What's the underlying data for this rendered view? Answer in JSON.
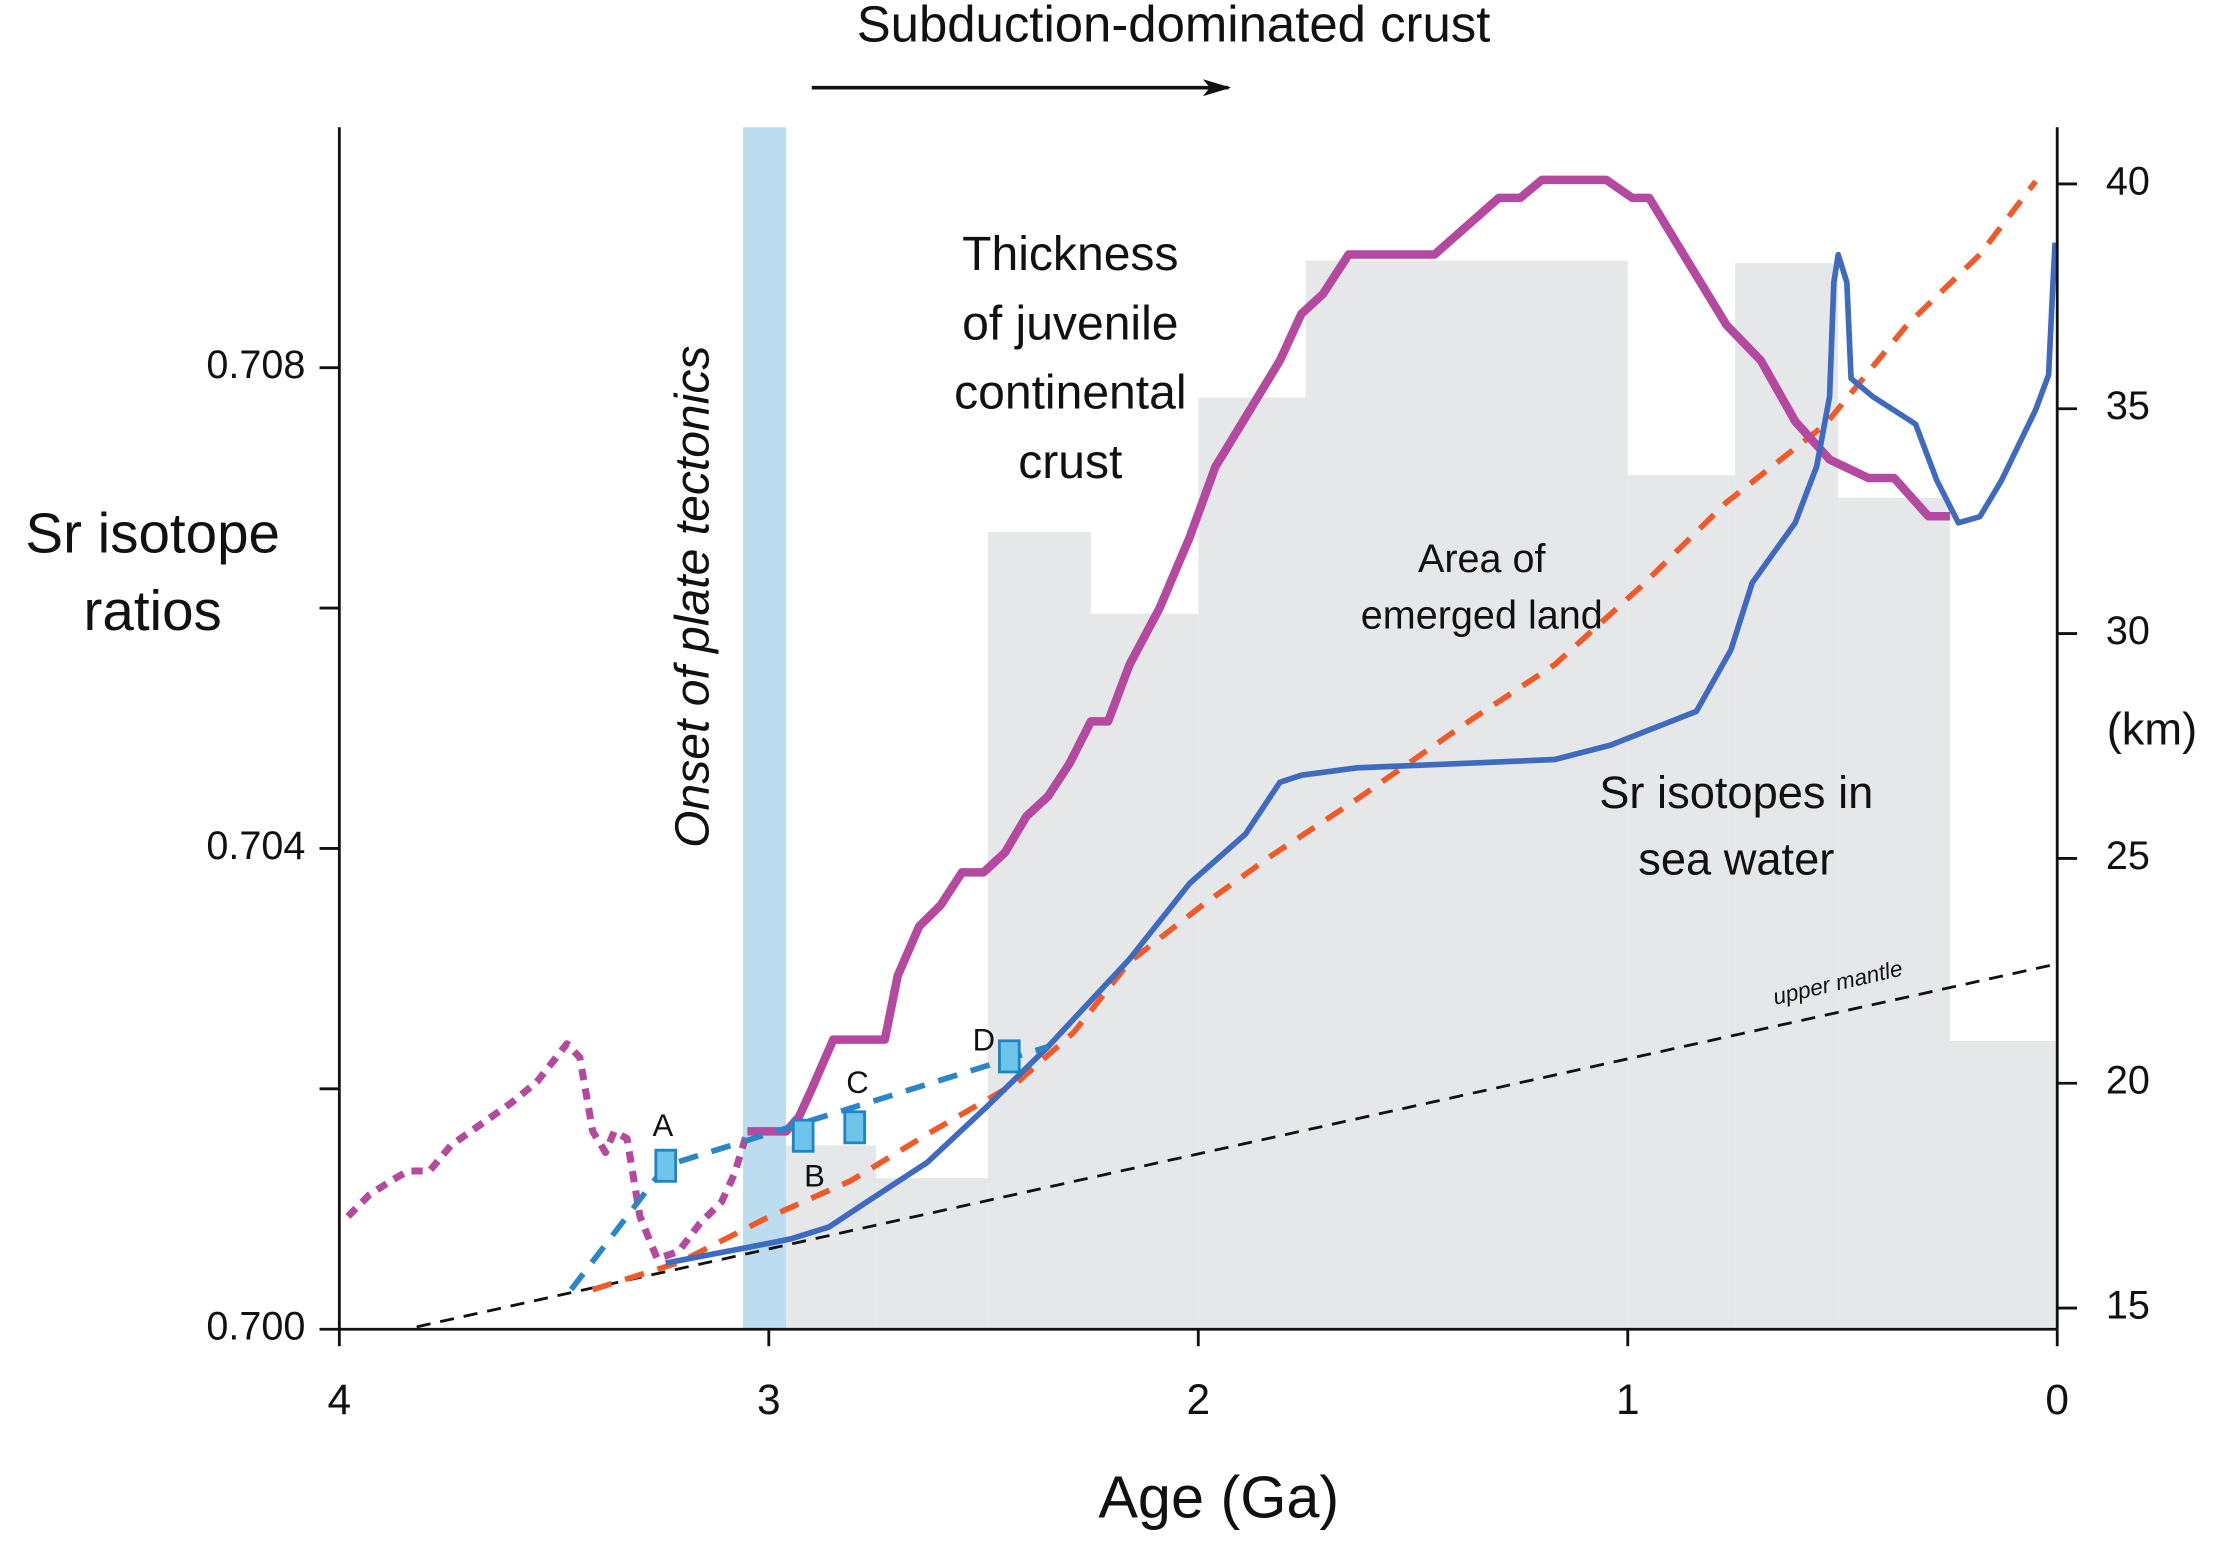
{
  "chart_data": {
    "type": "line",
    "title": "Subduction-dominated crust",
    "title_arrow": [
      2.9,
      1.93
    ],
    "xlabel": "Age (Ga)",
    "ylabel": [
      "Sr isotope",
      "ratios"
    ],
    "y2label": "(km)",
    "xlim": [
      4,
      0
    ],
    "xticks": [
      4,
      3,
      2,
      1,
      0
    ],
    "ylim": [
      0.7,
      0.71
    ],
    "yticks": [
      {
        "value": 0.7,
        "label": "0.700"
      },
      {
        "value": 0.702,
        "label": null
      },
      {
        "value": 0.704,
        "label": "0.704"
      },
      {
        "value": 0.706,
        "label": null
      },
      {
        "value": 0.708,
        "label": "0.708"
      }
    ],
    "y2lim": [
      14.53,
      41.26
    ],
    "y2ticks": [
      15,
      20,
      25,
      30,
      35,
      40
    ],
    "band": {
      "x": [
        3.06,
        2.96
      ],
      "label": "Onset of plate tectonics",
      "color": "#bcdcf0"
    },
    "bars": {
      "bins": [
        2.96,
        2.75,
        2.49,
        2.25,
        2.0,
        1.75,
        1.0,
        0.75,
        0.51,
        0.25,
        0
      ],
      "values": [
        18.62,
        17.89,
        32.26,
        30.44,
        35.25,
        38.3,
        33.52,
        38.24,
        33.02,
        20.94
      ],
      "color": "#e6e7e8",
      "axis": "y2"
    },
    "series": [
      {
        "label": [
          "Thickness",
          "of juvenile",
          "continental",
          "crust"
        ],
        "color": "#b5489f",
        "axis": "y2",
        "style": "solid",
        "x": [
          3.05,
          2.96,
          2.93,
          2.9,
          2.85,
          2.73,
          2.7,
          2.65,
          2.6,
          2.55,
          2.5,
          2.45,
          2.4,
          2.35,
          2.3,
          2.25,
          2.21,
          2.16,
          2.09,
          2.02,
          1.96,
          1.88,
          1.81,
          1.76,
          1.71,
          1.65,
          1.45,
          1.3,
          1.25,
          1.2,
          1.05,
          0.99,
          0.95,
          0.87,
          0.77,
          0.69,
          0.61,
          0.53,
          0.44,
          0.38,
          0.3,
          0.25
        ],
        "values": [
          18.93,
          18.93,
          19.25,
          19.87,
          20.97,
          20.97,
          22.39,
          23.49,
          23.96,
          24.69,
          24.69,
          25.13,
          25.94,
          26.38,
          27.11,
          28.05,
          28.05,
          29.31,
          30.57,
          32.14,
          33.71,
          34.97,
          36.07,
          37.11,
          37.55,
          38.43,
          38.43,
          39.69,
          39.69,
          40.09,
          40.09,
          39.69,
          39.69,
          38.43,
          36.86,
          36.07,
          34.72,
          33.87,
          33.46,
          33.46,
          32.61,
          32.61
        ]
      },
      {
        "color": "#b5489f",
        "axis": "y2",
        "style": "dotted",
        "x": [
          3.98,
          3.93,
          3.88,
          3.84,
          3.79,
          3.74,
          3.67,
          3.6,
          3.54,
          3.47,
          3.44,
          3.41,
          3.38,
          3.36,
          3.33,
          3.3,
          3.26,
          3.21,
          3.16,
          3.11,
          3.08,
          3.05
        ],
        "values": [
          17.04,
          17.52,
          17.83,
          18.05,
          18.05,
          18.62,
          19.09,
          19.56,
          20.03,
          20.88,
          20.57,
          18.93,
          18.46,
          18.93,
          18.77,
          17.04,
          16.1,
          16.26,
          16.89,
          17.36,
          17.99,
          18.93
        ]
      },
      {
        "label": [
          "Area of",
          "emerged land"
        ],
        "color": "#f05a28",
        "axis": "y2",
        "style": "dashed",
        "x": [
          3.41,
          3.21,
          3.01,
          2.81,
          2.62,
          2.42,
          2.29,
          2.16,
          1.99,
          1.83,
          1.63,
          1.37,
          1.17,
          0.97,
          0.77,
          0.54,
          0.35,
          0.18,
          0.05
        ],
        "values": [
          15.41,
          16.01,
          16.98,
          17.83,
          18.93,
          20.03,
          21.13,
          22.7,
          23.96,
          25.06,
          26.32,
          28.05,
          29.31,
          31.04,
          32.92,
          34.65,
          36.86,
          38.43,
          40.06
        ]
      },
      {
        "label": [
          "Sr isotopes in",
          "sea water"
        ],
        "color": "#3e6bbf",
        "axis": "y",
        "style": "solid",
        "x": [
          3.24,
          3.05,
          2.95,
          2.86,
          2.78,
          2.63,
          2.49,
          2.35,
          2.16,
          2.02,
          1.89,
          1.81,
          1.76,
          1.63,
          1.37,
          1.17,
          1.04,
          0.84,
          0.76,
          0.71,
          0.61,
          0.56,
          0.53,
          0.52,
          0.51,
          0.49,
          0.48,
          0.43,
          0.33,
          0.28,
          0.23,
          0.18,
          0.13,
          0.05,
          0.02,
          0.01,
          0.005
        ],
        "values": [
          0.70055,
          0.70068,
          0.70075,
          0.70085,
          0.70104,
          0.70139,
          0.70186,
          0.70235,
          0.70308,
          0.70371,
          0.70412,
          0.70455,
          0.70461,
          0.70467,
          0.70471,
          0.70474,
          0.70486,
          0.70514,
          0.70565,
          0.70621,
          0.70671,
          0.70718,
          0.70776,
          0.70871,
          0.70894,
          0.70871,
          0.70791,
          0.70776,
          0.70753,
          0.70706,
          0.70671,
          0.70676,
          0.70706,
          0.70765,
          0.70794,
          0.70871,
          0.70904
        ]
      },
      {
        "label": [
          "upper mantle"
        ],
        "color": "#111111",
        "axis": "y",
        "style": "thin",
        "x": [
          3.82,
          0
        ],
        "values": [
          0.70002,
          0.70304
        ]
      },
      {
        "color": "#2a86c7",
        "axis": "y",
        "style": "dashed",
        "x": [
          3.46,
          3.24,
          2.35
        ],
        "values": [
          0.70033,
          0.70136,
          0.70235
        ]
      }
    ],
    "points": {
      "labels": [
        "A",
        "B",
        "C",
        "D"
      ],
      "x": [
        3.24,
        2.92,
        2.8,
        2.44
      ],
      "values": [
        0.70136,
        0.70161,
        0.70168,
        0.70227
      ],
      "color": "#6ec5e9"
    }
  }
}
